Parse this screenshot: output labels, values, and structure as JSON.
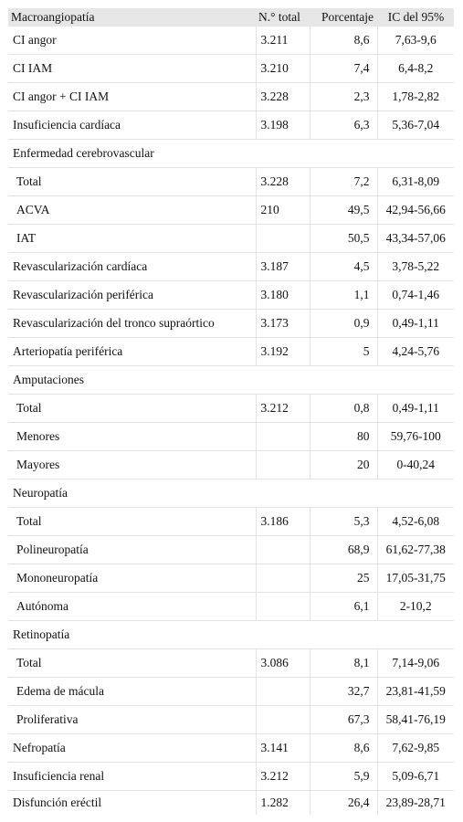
{
  "table": {
    "headers": [
      "Macroangiopatía",
      "N.° total",
      "Porcentaje",
      "IC del 95%"
    ],
    "rows": [
      {
        "label": "CI angor",
        "total": "3.211",
        "pct": "8,6",
        "ci": "7,63-9,6",
        "indent": false,
        "section": false
      },
      {
        "label": "CI IAM",
        "total": "3.210",
        "pct": "7,4",
        "ci": "6,4-8,2",
        "indent": false,
        "section": false
      },
      {
        "label": "CI angor + CI IAM",
        "total": "3.228",
        "pct": "2,3",
        "ci": "1,78-2,82",
        "indent": false,
        "section": false
      },
      {
        "label": "Insuficiencia cardíaca",
        "total": "3.198",
        "pct": "6,3",
        "ci": "5,36-7,04",
        "indent": false,
        "section": false
      },
      {
        "label": "Enfermedad cerebrovascular",
        "total": "",
        "pct": "",
        "ci": "",
        "indent": false,
        "section": true
      },
      {
        "label": "Total",
        "total": "3.228",
        "pct": "7,2",
        "ci": "6,31-8,09",
        "indent": true,
        "section": false
      },
      {
        "label": "ACVA",
        "total": "210",
        "pct": "49,5",
        "ci": "42,94-56,66",
        "indent": true,
        "section": false
      },
      {
        "label": "IAT",
        "total": "",
        "pct": "50,5",
        "ci": "43,34-57,06",
        "indent": true,
        "section": false
      },
      {
        "label": "Revascularización cardíaca",
        "total": "3.187",
        "pct": "4,5",
        "ci": "3,78-5,22",
        "indent": false,
        "section": false
      },
      {
        "label": "Revascularización periférica",
        "total": "3.180",
        "pct": "1,1",
        "ci": "0,74-1,46",
        "indent": false,
        "section": false
      },
      {
        "label": "Revascularización del tronco supraórtico",
        "total": "3.173",
        "pct": "0,9",
        "ci": "0,49-1,11",
        "indent": false,
        "section": false
      },
      {
        "label": "Arteriopatía periférica",
        "total": "3.192",
        "pct": "5",
        "ci": "4,24-5,76",
        "indent": false,
        "section": false
      },
      {
        "label": "Amputaciones",
        "total": "",
        "pct": "",
        "ci": "",
        "indent": false,
        "section": true
      },
      {
        "label": "Total",
        "total": "3.212",
        "pct": "0,8",
        "ci": "0,49-1,11",
        "indent": true,
        "section": false
      },
      {
        "label": "Menores",
        "total": "",
        "pct": "80",
        "ci": "59,76-100",
        "indent": true,
        "section": false
      },
      {
        "label": "Mayores",
        "total": "",
        "pct": "20",
        "ci": "0-40,24",
        "indent": true,
        "section": false
      },
      {
        "label": "Neuropatía",
        "total": "",
        "pct": "",
        "ci": "",
        "indent": false,
        "section": true
      },
      {
        "label": "Total",
        "total": "3.186",
        "pct": "5,3",
        "ci": "4,52-6,08",
        "indent": true,
        "section": false
      },
      {
        "label": "Polineuropatía",
        "total": "",
        "pct": "68,9",
        "ci": "61,62-77,38",
        "indent": true,
        "section": false
      },
      {
        "label": "Mononeuropatía",
        "total": "",
        "pct": "25",
        "ci": "17,05-31,75",
        "indent": true,
        "section": false
      },
      {
        "label": "Autónoma",
        "total": "",
        "pct": "6,1",
        "ci": "2-10,2",
        "indent": true,
        "section": false
      },
      {
        "label": "Retinopatía",
        "total": "",
        "pct": "",
        "ci": "",
        "indent": false,
        "section": true
      },
      {
        "label": "Total",
        "total": "3.086",
        "pct": "8,1",
        "ci": "7,14-9,06",
        "indent": true,
        "section": false
      },
      {
        "label": "Edema de mácula",
        "total": "",
        "pct": "32,7",
        "ci": "23,81-41,59",
        "indent": true,
        "section": false
      },
      {
        "label": "Proliferativa",
        "total": "",
        "pct": "67,3",
        "ci": "58,41-76,19",
        "indent": true,
        "section": false
      },
      {
        "label": "Nefropatía",
        "total": "3.141",
        "pct": "8,6",
        "ci": "7,62-9,85",
        "indent": false,
        "section": false
      },
      {
        "label": "Insuficiencia renal",
        "total": "3.212",
        "pct": "5,9",
        "ci": "5,09-6,71",
        "indent": false,
        "section": false
      },
      {
        "label": "Disfunción eréctil",
        "total": "1.282",
        "pct": "26,4",
        "ci": "23,89-28,71",
        "indent": false,
        "section": false
      }
    ]
  }
}
